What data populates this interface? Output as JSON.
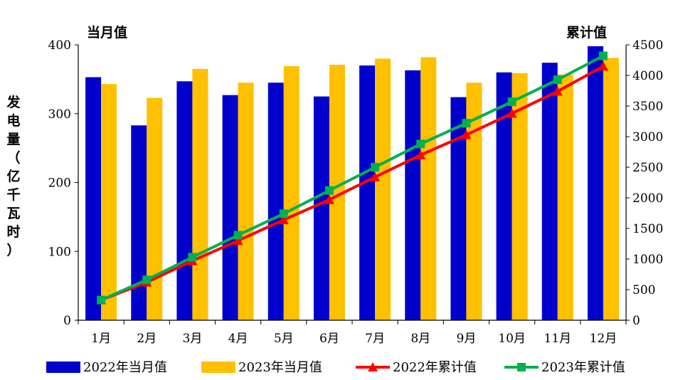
{
  "chart_data": {
    "type": "bar",
    "categories": [
      "1月",
      "2月",
      "3月",
      "4月",
      "5月",
      "6月",
      "7月",
      "8月",
      "9月",
      "10月",
      "11月",
      "12月"
    ],
    "ylabel": "发电量（亿千瓦时）",
    "y_left_title": "当月值",
    "y_right_title": "累计值",
    "ylim_left": [
      0,
      400
    ],
    "ylim_right": [
      0,
      4500
    ],
    "yticks_left": [
      "0",
      "100",
      "200",
      "300",
      "400"
    ],
    "yticks_right": [
      "0",
      "500",
      "1000",
      "1500",
      "2000",
      "2500",
      "3000",
      "3500",
      "4000",
      "4500"
    ],
    "grid": false,
    "legend_position": "bottom",
    "series": [
      {
        "name": "2022年当月值",
        "type": "bar",
        "axis": "left",
        "color": "#0000CC",
        "values": [
          353,
          283,
          347,
          327,
          345,
          325,
          370,
          363,
          324,
          360,
          374,
          398
        ]
      },
      {
        "name": "2023年当月值",
        "type": "bar",
        "axis": "left",
        "color": "#FFC000",
        "values": [
          343,
          323,
          365,
          345,
          369,
          371,
          380,
          382,
          345,
          359,
          357,
          381
        ]
      },
      {
        "name": "2022年累计值",
        "type": "line",
        "axis": "right",
        "color": "#FF0000",
        "marker": "triangle",
        "values": [
          330,
          620,
          970,
          1300,
          1640,
          1970,
          2340,
          2700,
          3030,
          3380,
          3740,
          4150
        ]
      },
      {
        "name": "2023年累计值",
        "type": "line",
        "axis": "right",
        "color": "#00B050",
        "marker": "square",
        "values": [
          330,
          660,
          1030,
          1390,
          1740,
          2120,
          2500,
          2880,
          3220,
          3570,
          3930,
          4320
        ]
      }
    ]
  }
}
